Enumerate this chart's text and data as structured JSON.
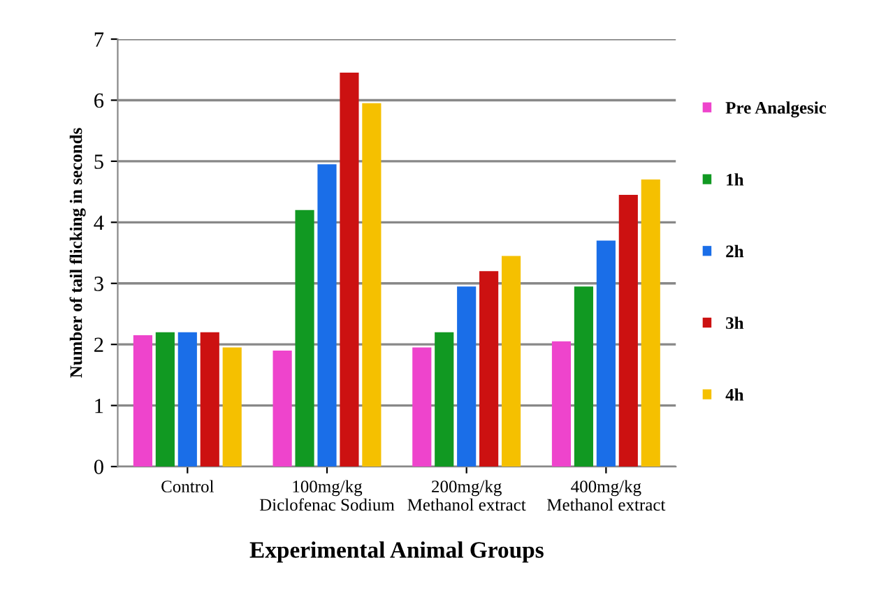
{
  "chart_data": {
    "type": "bar",
    "xlabel": "Experimental Animal Groups",
    "ylabel": "Number of tail flicking in seconds",
    "categories": [
      "Control",
      "100mg/kg\nDiclofenac Sodium",
      "200mg/kg\nMethanol extract",
      "400mg/kg\nMethanol extract"
    ],
    "series": [
      {
        "name": "Pre Analgesic",
        "color": "#ee44cc",
        "values": [
          2.15,
          1.9,
          1.95,
          2.05
        ]
      },
      {
        "name": "1h",
        "color": "#119922",
        "values": [
          2.2,
          4.2,
          2.2,
          2.95
        ]
      },
      {
        "name": "2h",
        "color": "#1a6ee8",
        "values": [
          2.2,
          4.95,
          2.95,
          3.7
        ]
      },
      {
        "name": "3h",
        "color": "#cc1111",
        "values": [
          2.2,
          6.45,
          3.2,
          4.45
        ]
      },
      {
        "name": "4h",
        "color": "#f5c000",
        "values": [
          1.95,
          5.95,
          3.45,
          4.7
        ]
      }
    ],
    "ylim": [
      0,
      7
    ],
    "yticks": [
      0,
      1,
      2,
      3,
      4,
      5,
      6,
      7
    ],
    "grid": "y",
    "legend": "right"
  }
}
